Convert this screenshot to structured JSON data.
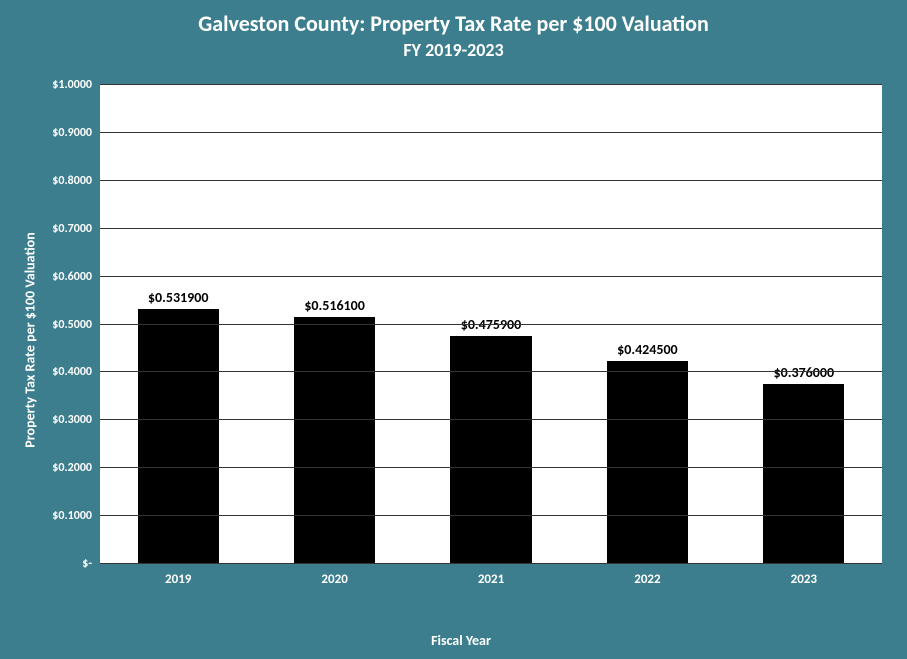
{
  "chart": {
    "type": "bar",
    "title": "Galveston County: Property Tax Rate per $100 Valuation",
    "subtitle": "FY 2019-2023",
    "title_fontsize": 22,
    "subtitle_fontsize": 18,
    "xlabel": "Fiscal Year",
    "ylabel": "Property Tax Rate per $100 Valuation",
    "label_fontsize": 14,
    "categories": [
      "2019",
      "2020",
      "2021",
      "2022",
      "2023"
    ],
    "values": [
      0.5319,
      0.5161,
      0.4759,
      0.4245,
      0.376
    ],
    "value_labels": [
      "$0.531900",
      "$0.516100",
      "$0.475900",
      "$0.424500",
      "$0.376000"
    ],
    "value_label_fontsize": 14,
    "ylim": [
      0,
      1.0
    ],
    "ytick_step": 0.1,
    "ytick_labels": [
      "$-",
      "$0.1000",
      "$0.2000",
      "$0.3000",
      "$0.4000",
      "$0.5000",
      "$0.6000",
      "$0.7000",
      "$0.8000",
      "$0.9000",
      "$1.0000"
    ],
    "ytick_fontsize": 12,
    "xtick_fontsize": 13,
    "bar_color": "#000000",
    "bar_width_pct": 52,
    "background_color": "#3c7e8e",
    "plot_background_color": "#ffffff",
    "grid_color": "#333333",
    "title_color": "#ffffff",
    "axis_text_color": "#ffffff",
    "value_label_color": "#000000"
  }
}
